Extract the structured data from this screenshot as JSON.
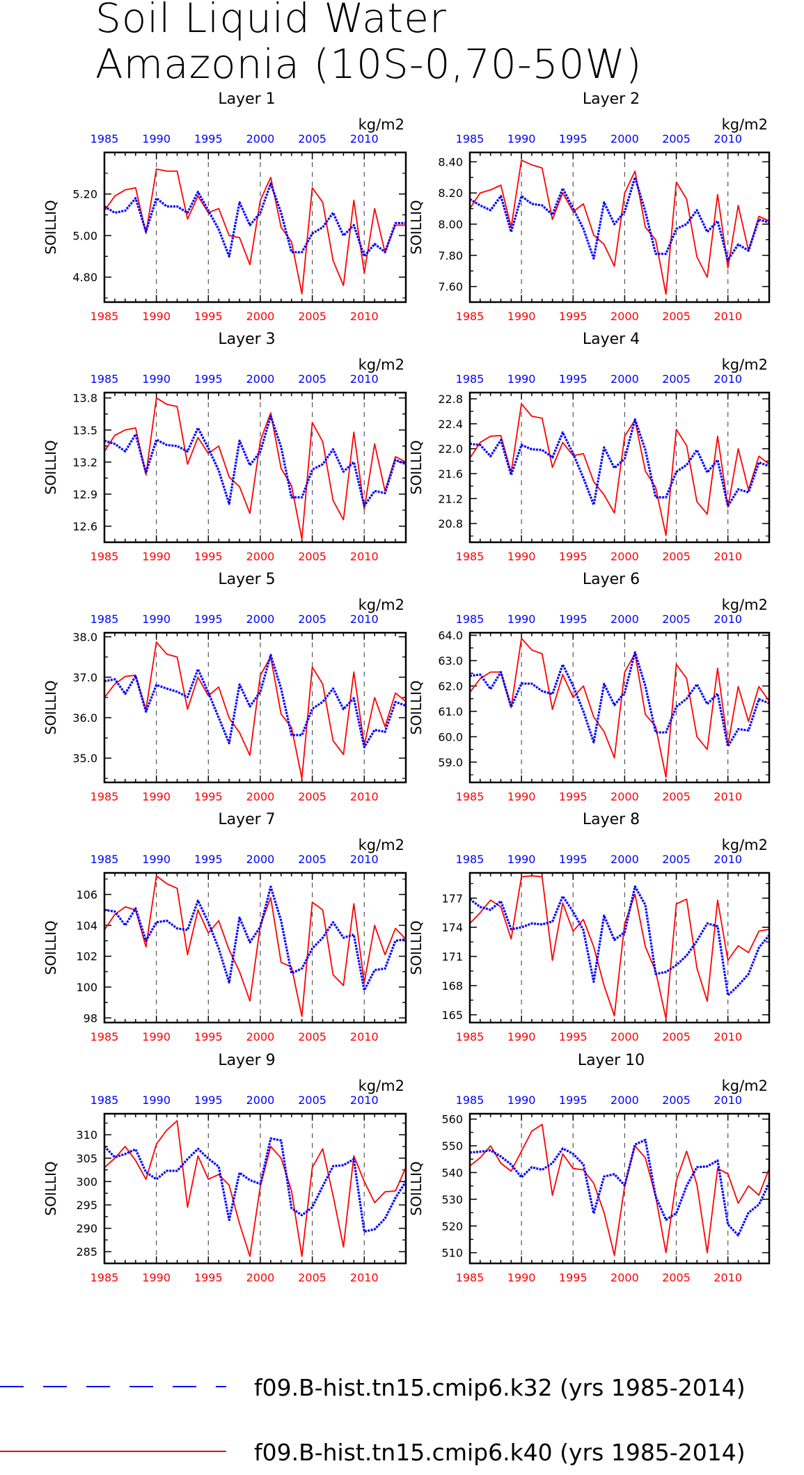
{
  "title_lines": [
    "Soil Liquid Water",
    "Amazonia (10S-0,70-50W)"
  ],
  "legend": [
    {
      "label": "f09.B-hist.tn15.cmip6.k32 (yrs 1985-2014)",
      "color": "#0000ff",
      "style": "dashed"
    },
    {
      "label": "f09.B-hist.tn15.cmip6.k40 (yrs 1985-2014)",
      "color": "#ff0000",
      "style": "solid"
    }
  ],
  "colors": {
    "top_axis": "#0000ff",
    "bottom_axis": "#ff0000",
    "k32": "#0000ff",
    "k40": "#ff0000"
  },
  "chart_data": [
    {
      "type": "line",
      "title": "Layer 1",
      "ylabel": "SOILLIQ",
      "units": "kg/m2",
      "xlim": [
        1985,
        2014
      ],
      "ylim": [
        4.68,
        5.4
      ],
      "yticks": [
        4.8,
        5.0,
        5.2
      ],
      "ytick_labels": [
        "4.80",
        "5.00",
        "5.20"
      ],
      "xticks": [
        1985,
        1990,
        1995,
        2000,
        2005,
        2010
      ],
      "x_start": 1985,
      "series": [
        {
          "name": "f09.B-hist.tn15.cmip6.k32 (yrs 1985-2014)",
          "values": [
            5.14,
            5.11,
            5.12,
            5.18,
            5.02,
            5.18,
            5.14,
            5.14,
            5.11,
            5.21,
            5.12,
            5.03,
            4.9,
            5.16,
            5.05,
            5.11,
            5.25,
            5.11,
            4.92,
            4.92,
            5.01,
            5.04,
            5.11,
            5.0,
            5.05,
            4.9,
            4.96,
            4.92,
            5.06,
            5.06
          ]
        },
        {
          "name": "f09.B-hist.tn15.cmip6.k40 (yrs 1985-2014)",
          "values": [
            5.12,
            5.19,
            5.22,
            5.23,
            5.01,
            5.32,
            5.31,
            5.31,
            5.08,
            5.19,
            5.11,
            5.13,
            5.0,
            4.99,
            4.86,
            5.17,
            5.28,
            5.04,
            4.97,
            4.72,
            5.23,
            5.16,
            4.88,
            4.76,
            5.17,
            4.82,
            5.13,
            4.92,
            5.05,
            5.05
          ]
        }
      ]
    },
    {
      "type": "line",
      "title": "Layer 2",
      "ylabel": "SOILLIQ",
      "units": "kg/m2",
      "xlim": [
        1985,
        2014
      ],
      "ylim": [
        7.5,
        8.46
      ],
      "yticks": [
        7.6,
        7.8,
        8.0,
        8.2,
        8.4
      ],
      "ytick_labels": [
        "7.60",
        "7.80",
        "8.00",
        "8.20",
        "8.40"
      ],
      "xticks": [
        1985,
        1990,
        1995,
        2000,
        2005,
        2010
      ],
      "x_start": 1985,
      "series": [
        {
          "name": "f09.B-hist.tn15.cmip6.k32 (yrs 1985-2014)",
          "values": [
            8.16,
            8.12,
            8.09,
            8.18,
            7.95,
            8.18,
            8.13,
            8.12,
            8.06,
            8.23,
            8.1,
            7.97,
            7.78,
            8.14,
            8.0,
            8.08,
            8.3,
            8.08,
            7.81,
            7.81,
            7.97,
            8.0,
            8.09,
            7.95,
            8.02,
            7.77,
            7.87,
            7.83,
            8.03,
            8.01
          ]
        },
        {
          "name": "f09.B-hist.tn15.cmip6.k40 (yrs 1985-2014)",
          "values": [
            8.1,
            8.2,
            8.22,
            8.25,
            7.98,
            8.41,
            8.38,
            8.36,
            8.03,
            8.2,
            8.08,
            8.13,
            7.93,
            7.87,
            7.73,
            8.2,
            8.34,
            7.98,
            7.9,
            7.55,
            8.27,
            8.16,
            7.79,
            7.66,
            8.19,
            7.72,
            8.12,
            7.83,
            8.05,
            8.02
          ]
        }
      ]
    },
    {
      "type": "line",
      "title": "Layer 3",
      "ylabel": "SOILLIQ",
      "units": "kg/m2",
      "xlim": [
        1985,
        2014
      ],
      "ylim": [
        12.45,
        13.85
      ],
      "yticks": [
        12.6,
        12.9,
        13.2,
        13.5,
        13.8
      ],
      "ytick_labels": [
        "12.6",
        "12.9",
        "13.2",
        "13.5",
        "13.8"
      ],
      "xticks": [
        1985,
        1990,
        1995,
        2000,
        2005,
        2010
      ],
      "x_start": 1985,
      "series": [
        {
          "name": "f09.B-hist.tn15.cmip6.k32 (yrs 1985-2014)",
          "values": [
            13.4,
            13.37,
            13.3,
            13.46,
            13.1,
            13.41,
            13.36,
            13.35,
            13.3,
            13.52,
            13.33,
            13.12,
            12.81,
            13.4,
            13.17,
            13.3,
            13.63,
            13.34,
            12.87,
            12.87,
            13.13,
            13.18,
            13.32,
            13.11,
            13.2,
            12.79,
            12.93,
            12.91,
            13.22,
            13.18
          ]
        },
        {
          "name": "f09.B-hist.tn15.cmip6.k40 (yrs 1985-2014)",
          "values": [
            13.3,
            13.45,
            13.5,
            13.52,
            13.08,
            13.8,
            13.74,
            13.72,
            13.18,
            13.43,
            13.28,
            13.35,
            13.06,
            12.97,
            12.72,
            13.4,
            13.66,
            13.14,
            12.98,
            12.48,
            13.57,
            13.39,
            12.84,
            12.66,
            13.48,
            12.76,
            13.37,
            12.93,
            13.25,
            13.2
          ]
        }
      ]
    },
    {
      "type": "line",
      "title": "Layer 4",
      "ylabel": "SOILLIQ",
      "units": "kg/m2",
      "xlim": [
        1985,
        2014
      ],
      "ylim": [
        20.5,
        22.9
      ],
      "yticks": [
        20.8,
        21.2,
        21.6,
        22.0,
        22.4,
        22.8
      ],
      "ytick_labels": [
        "20.8",
        "21.2",
        "21.6",
        "22.0",
        "22.4",
        "22.8"
      ],
      "xticks": [
        1985,
        1990,
        1995,
        2000,
        2005,
        2010
      ],
      "x_start": 1985,
      "series": [
        {
          "name": "f09.B-hist.tn15.cmip6.k32 (yrs 1985-2014)",
          "values": [
            22.08,
            22.06,
            21.88,
            22.14,
            21.58,
            22.06,
            21.99,
            21.98,
            21.86,
            22.26,
            21.92,
            21.53,
            21.1,
            22.02,
            21.69,
            21.84,
            22.47,
            21.98,
            21.22,
            21.22,
            21.63,
            21.74,
            21.98,
            21.62,
            21.82,
            21.08,
            21.35,
            21.3,
            21.78,
            21.72
          ]
        },
        {
          "name": "f09.B-hist.tn15.cmip6.k40 (yrs 1985-2014)",
          "values": [
            21.85,
            22.1,
            22.2,
            22.21,
            21.62,
            22.72,
            22.52,
            22.49,
            21.7,
            22.1,
            21.89,
            21.92,
            21.47,
            21.26,
            20.97,
            22.2,
            22.46,
            21.64,
            21.38,
            20.61,
            22.31,
            22.05,
            21.15,
            20.95,
            22.2,
            21.06,
            22.0,
            21.34,
            21.88,
            21.75
          ]
        }
      ]
    },
    {
      "type": "line",
      "title": "Layer 5",
      "ylabel": "SOILLIQ",
      "units": "kg/m2",
      "xlim": [
        1985,
        2014
      ],
      "ylim": [
        34.4,
        38.1
      ],
      "yticks": [
        35.0,
        36.0,
        37.0,
        38.0
      ],
      "ytick_labels": [
        "35.0",
        "36.0",
        "37.0",
        "38.0"
      ],
      "xticks": [
        1985,
        1990,
        1995,
        2000,
        2005,
        2010
      ],
      "x_start": 1985,
      "series": [
        {
          "name": "f09.B-hist.tn15.cmip6.k32 (yrs 1985-2014)",
          "values": [
            36.9,
            36.95,
            36.59,
            37.03,
            36.15,
            36.81,
            36.72,
            36.64,
            36.51,
            37.2,
            36.62,
            36.0,
            35.37,
            36.82,
            36.28,
            36.64,
            37.55,
            36.72,
            35.57,
            35.57,
            36.22,
            36.39,
            36.72,
            36.21,
            36.48,
            35.27,
            35.7,
            35.65,
            36.39,
            36.3
          ]
        },
        {
          "name": "f09.B-hist.tn15.cmip6.k40 (yrs 1985-2014)",
          "values": [
            36.5,
            36.83,
            37.02,
            37.05,
            36.2,
            37.87,
            37.57,
            37.5,
            36.21,
            37.0,
            36.54,
            36.76,
            35.99,
            35.63,
            35.07,
            37.05,
            37.5,
            36.09,
            35.76,
            34.5,
            37.25,
            36.83,
            35.43,
            35.09,
            37.13,
            35.32,
            36.5,
            35.78,
            36.61,
            36.4
          ]
        }
      ]
    },
    {
      "type": "line",
      "title": "Layer 6",
      "ylabel": "SOILLIQ",
      "units": "kg/m2",
      "xlim": [
        1985,
        2014
      ],
      "ylim": [
        58.2,
        64.1
      ],
      "yticks": [
        59.0,
        60.0,
        61.0,
        62.0,
        63.0,
        64.0
      ],
      "ytick_labels": [
        "59.0",
        "60.0",
        "61.0",
        "62.0",
        "63.0",
        "64.0"
      ],
      "xticks": [
        1985,
        1990,
        1995,
        2000,
        2005,
        2010
      ],
      "x_start": 1985,
      "series": [
        {
          "name": "f09.B-hist.tn15.cmip6.k32 (yrs 1985-2014)",
          "values": [
            62.4,
            62.45,
            61.88,
            62.55,
            61.18,
            62.1,
            62.09,
            61.8,
            61.68,
            62.85,
            62.0,
            61.0,
            59.78,
            62.08,
            61.25,
            61.74,
            63.33,
            62.0,
            60.17,
            60.17,
            61.18,
            61.5,
            62.07,
            61.29,
            61.7,
            59.62,
            60.3,
            60.25,
            61.48,
            61.32
          ]
        },
        {
          "name": "f09.B-hist.tn15.cmip6.k40 (yrs 1985-2014)",
          "values": [
            61.75,
            62.29,
            62.55,
            62.55,
            61.15,
            63.88,
            63.42,
            63.27,
            61.08,
            62.45,
            61.55,
            62.0,
            60.78,
            60.2,
            59.17,
            62.55,
            63.28,
            60.88,
            60.4,
            58.4,
            62.85,
            62.3,
            60.0,
            59.5,
            62.7,
            59.68,
            61.98,
            60.6,
            61.98,
            61.4
          ]
        }
      ]
    },
    {
      "type": "line",
      "title": "Layer 7",
      "ylabel": "SOILLIQ",
      "units": "kg/m2",
      "xlim": [
        1985,
        2014
      ],
      "ylim": [
        97.7,
        107.4
      ],
      "yticks": [
        98,
        100,
        102,
        104,
        106
      ],
      "ytick_labels": [
        "98",
        "100",
        "102",
        "104",
        "106"
      ],
      "xticks": [
        1985,
        1990,
        1995,
        2000,
        2005,
        2010
      ],
      "x_start": 1985,
      "series": [
        {
          "name": "f09.B-hist.tn15.cmip6.k32 (yrs 1985-2014)",
          "values": [
            105.0,
            104.9,
            104.0,
            105.1,
            103.0,
            104.2,
            104.3,
            103.8,
            103.7,
            105.6,
            104.2,
            102.5,
            100.3,
            104.5,
            102.9,
            103.9,
            106.5,
            104.3,
            100.9,
            101.2,
            102.5,
            103.2,
            104.2,
            103.2,
            103.4,
            99.8,
            101.1,
            101.2,
            103.0,
            103.1
          ]
        },
        {
          "name": "f09.B-hist.tn15.cmip6.k40 (yrs 1985-2014)",
          "values": [
            103.7,
            104.7,
            105.2,
            105.0,
            102.6,
            107.2,
            106.7,
            106.4,
            102.1,
            105.0,
            103.5,
            104.3,
            102.4,
            101.0,
            99.1,
            104.0,
            105.8,
            101.6,
            101.3,
            98.1,
            105.5,
            105.0,
            100.8,
            100.1,
            105.4,
            100.3,
            104.0,
            102.1,
            103.8,
            103.1
          ]
        }
      ]
    },
    {
      "type": "line",
      "title": "Layer 8",
      "ylabel": "SOILLIQ",
      "units": "kg/m2",
      "xlim": [
        1985,
        2014
      ],
      "ylim": [
        164.2,
        179.6
      ],
      "yticks": [
        165,
        168,
        171,
        174,
        177
      ],
      "ytick_labels": [
        "165",
        "168",
        "171",
        "174",
        "177"
      ],
      "xticks": [
        1985,
        1990,
        1995,
        2000,
        2005,
        2010
      ],
      "x_start": 1985,
      "series": [
        {
          "name": "f09.B-hist.tn15.cmip6.k32 (yrs 1985-2014)",
          "values": [
            176.9,
            176.1,
            175.8,
            176.7,
            173.8,
            174.0,
            174.4,
            174.3,
            174.6,
            177.2,
            175.6,
            173.7,
            168.4,
            175.2,
            172.7,
            173.5,
            178.2,
            176.3,
            169.2,
            169.4,
            170.1,
            171.1,
            172.6,
            174.4,
            174.1,
            167.0,
            168.0,
            169.2,
            171.9,
            173.2
          ]
        },
        {
          "name": "f09.B-hist.tn15.cmip6.k40 (yrs 1985-2014)",
          "values": [
            174.4,
            175.5,
            176.8,
            176.1,
            172.8,
            179.2,
            179.3,
            179.2,
            170.6,
            176.5,
            173.6,
            174.8,
            172.0,
            168.0,
            164.9,
            174.4,
            177.4,
            172.0,
            169.5,
            164.6,
            176.4,
            176.9,
            169.8,
            166.4,
            176.8,
            170.6,
            172.1,
            171.4,
            173.6,
            173.8
          ]
        }
      ]
    },
    {
      "type": "line",
      "title": "Layer 9",
      "ylabel": "SOILLIQ",
      "units": "kg/m2",
      "xlim": [
        1985,
        2014
      ],
      "ylim": [
        282.5,
        314.5
      ],
      "yticks": [
        285,
        290,
        295,
        300,
        305,
        310
      ],
      "ytick_labels": [
        "285",
        "290",
        "295",
        "300",
        "305",
        "310"
      ],
      "xticks": [
        1985,
        1990,
        1995,
        2000,
        2005,
        2010
      ],
      "x_start": 1985,
      "series": [
        {
          "name": "f09.B-hist.tn15.cmip6.k32 (yrs 1985-2014)",
          "values": [
            307.5,
            305.2,
            305.9,
            306.9,
            302.0,
            300.5,
            302.3,
            302.3,
            304.8,
            307.0,
            304.9,
            303.2,
            291.8,
            301.9,
            300.3,
            299.5,
            309.2,
            308.8,
            294.3,
            292.8,
            294.5,
            299.0,
            303.3,
            303.5,
            304.8,
            289.3,
            289.8,
            292.1,
            296.5,
            300.0
          ]
        },
        {
          "name": "f09.B-hist.tn15.cmip6.k40 (yrs 1985-2014)",
          "values": [
            303.0,
            305.0,
            307.5,
            304.5,
            300.5,
            308.0,
            311.0,
            313.0,
            294.5,
            305.5,
            300.5,
            301.5,
            299.2,
            291.0,
            284.0,
            299.0,
            307.5,
            305.0,
            298.0,
            284.0,
            303.0,
            307.0,
            297.0,
            286.0,
            305.5,
            300.0,
            295.5,
            297.8,
            298.0,
            303.0
          ]
        }
      ]
    },
    {
      "type": "line",
      "title": "Layer 10",
      "ylabel": "SOILLIQ",
      "units": "kg/m2",
      "xlim": [
        1985,
        2014
      ],
      "ylim": [
        506,
        562
      ],
      "yticks": [
        510,
        520,
        530,
        540,
        550,
        560
      ],
      "ytick_labels": [
        "510",
        "520",
        "530",
        "540",
        "550",
        "560"
      ],
      "xticks": [
        1985,
        1990,
        1995,
        2000,
        2005,
        2010
      ],
      "x_start": 1985,
      "series": [
        {
          "name": "f09.B-hist.tn15.cmip6.k32 (yrs 1985-2014)",
          "values": [
            547.5,
            547.8,
            548.3,
            546.0,
            543.0,
            538.2,
            542.0,
            541.0,
            543.5,
            549.0,
            547.0,
            543.0,
            524.7,
            538.5,
            539.4,
            535.2,
            550.5,
            552.2,
            531.0,
            522.3,
            524.8,
            535.0,
            542.0,
            542.3,
            544.5,
            520.6,
            516.5,
            525.0,
            528.0,
            536.0
          ]
        },
        {
          "name": "f09.B-hist.tn15.cmip6.k40 (yrs 1985-2014)",
          "values": [
            542.5,
            545.5,
            550.0,
            543.5,
            540.5,
            548.0,
            555.5,
            558.0,
            531.5,
            547.0,
            541.5,
            541.0,
            536.0,
            525.0,
            509.0,
            535.0,
            550.0,
            545.5,
            531.0,
            510.0,
            537.0,
            548.0,
            535.5,
            510.0,
            541.5,
            539.5,
            528.5,
            535.0,
            531.5,
            541.5
          ]
        }
      ]
    }
  ]
}
